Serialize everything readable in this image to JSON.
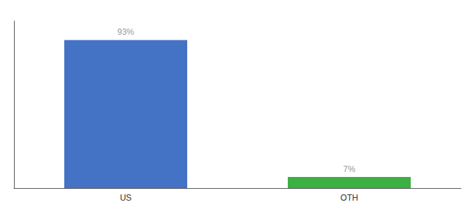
{
  "chart_data": {
    "type": "bar",
    "categories": [
      "US",
      "OTH"
    ],
    "values": [
      93,
      7
    ],
    "value_labels": [
      "93%",
      "7%"
    ],
    "colors": [
      "#4472c4",
      "#3cb043"
    ],
    "ylim": [
      0,
      105
    ],
    "grid": false,
    "data_labels": true,
    "tick_labels": "x"
  }
}
